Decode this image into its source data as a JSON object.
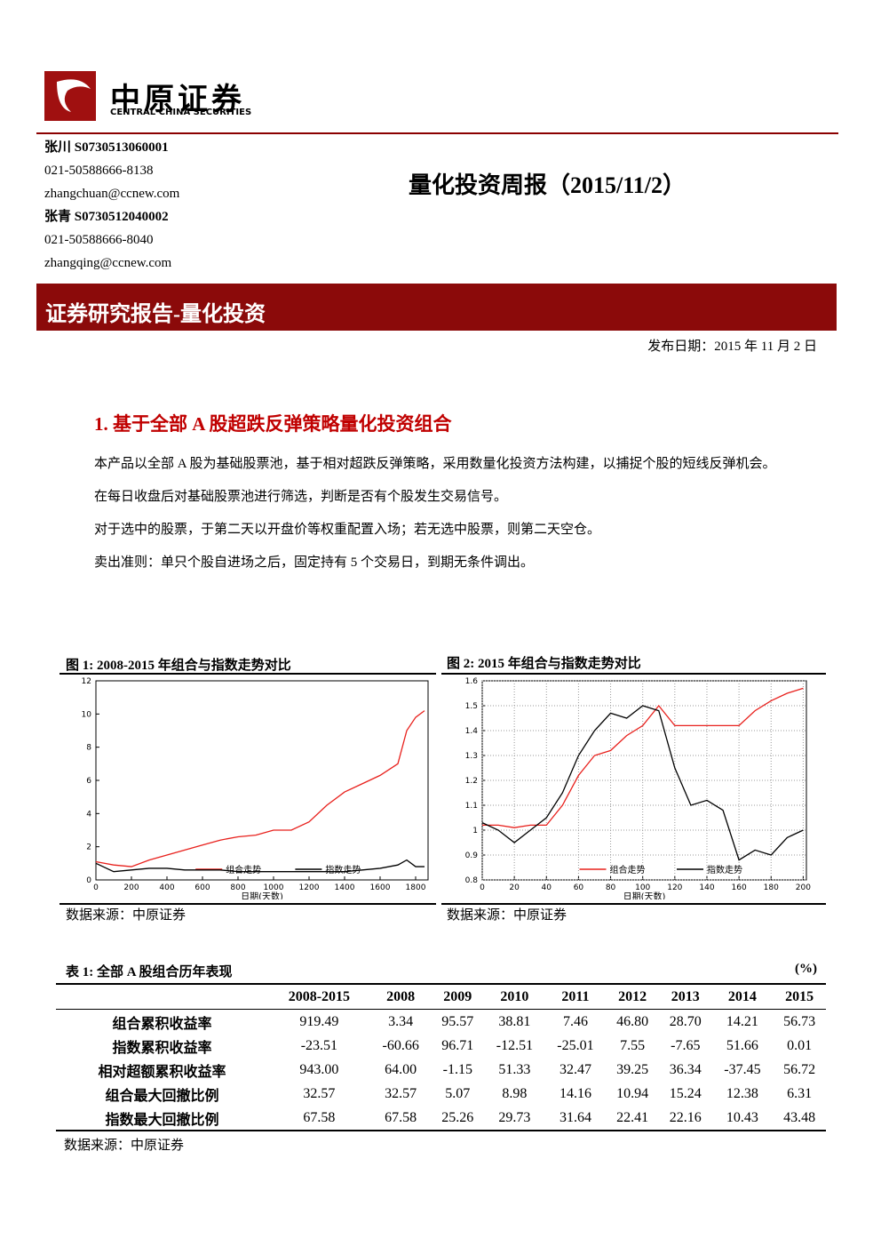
{
  "header": {
    "logo_cn": "中原证券",
    "logo_en": "CENTRAL CHINA SECURITIES",
    "title": "量化投资周报（2015/11/2）"
  },
  "authors": [
    {
      "name": "张川 S0730513060001",
      "phone": "021-50588666-8138",
      "email": "zhangchuan@ccnew.com"
    },
    {
      "name": "张青 S0730512040002",
      "phone": "021-50588666-8040",
      "email": "zhangqing@ccnew.com"
    }
  ],
  "banner": "证券研究报告-量化投资",
  "date": "发布日期：2015 年 11 月 2 日",
  "section": {
    "heading": "1. 基于全部 A 股超跌反弹策略量化投资组合",
    "paragraphs": [
      "本产品以全部 A 股为基础股票池，基于相对超跌反弹策略，采用数量化投资方法构建，以捕捉个股的短线反弹机会。",
      "在每日收盘后对基础股票池进行筛选，判断是否有个股发生交易信号。",
      "对于选中的股票，于第二天以开盘价等权重配置入场；若无选中股票，则第二天空仓。",
      "卖出准则：单只个股自进场之后，固定持有 5 个交易日，到期无条件调出。"
    ]
  },
  "figures": [
    {
      "caption": "图 1: 2008-2015 年组合与指数走势对比",
      "source": "数据来源：中原证券",
      "chart": {
        "type": "line",
        "x_label": "日期(天数)",
        "x": [
          0,
          100,
          200,
          300,
          400,
          500,
          600,
          700,
          800,
          900,
          1000,
          1100,
          1200,
          1300,
          1400,
          1500,
          1600,
          1700,
          1750,
          1800,
          1850
        ],
        "series": [
          {
            "name": "组合走势",
            "color": "#e8201c",
            "values": [
              1.1,
              0.9,
              0.8,
              1.2,
              1.5,
              1.8,
              2.1,
              2.4,
              2.6,
              2.7,
              3.0,
              3.0,
              3.5,
              4.5,
              5.3,
              5.8,
              6.3,
              7.0,
              9.0,
              9.8,
              10.2
            ]
          },
          {
            "name": "指数走势",
            "color": "#000000",
            "values": [
              1.0,
              0.5,
              0.6,
              0.7,
              0.7,
              0.6,
              0.6,
              0.6,
              0.5,
              0.5,
              0.5,
              0.5,
              0.5,
              0.5,
              0.5,
              0.6,
              0.7,
              0.9,
              1.2,
              0.8,
              0.8
            ]
          }
        ],
        "xlim": [
          0,
          1870
        ],
        "xticks": [
          0,
          200,
          400,
          600,
          800,
          1000,
          1200,
          1400,
          1600,
          1800
        ],
        "ylim": [
          0,
          12
        ],
        "yticks": [
          0,
          2,
          4,
          6,
          8,
          10,
          12
        ],
        "grid": false
      }
    },
    {
      "caption": "图 2: 2015 年组合与指数走势对比",
      "source": "数据来源：中原证券",
      "chart": {
        "type": "line",
        "x_label": "日期(天数)",
        "x": [
          0,
          10,
          20,
          30,
          40,
          50,
          60,
          70,
          80,
          90,
          100,
          110,
          120,
          130,
          140,
          150,
          160,
          170,
          180,
          190,
          200
        ],
        "series": [
          {
            "name": "组合走势",
            "color": "#e8201c",
            "values": [
              1.02,
              1.02,
              1.01,
              1.02,
              1.02,
              1.1,
              1.22,
              1.3,
              1.32,
              1.38,
              1.42,
              1.5,
              1.42,
              1.42,
              1.42,
              1.42,
              1.42,
              1.48,
              1.52,
              1.55,
              1.57
            ]
          },
          {
            "name": "指数走势",
            "color": "#000000",
            "values": [
              1.03,
              1.0,
              0.95,
              1.0,
              1.05,
              1.15,
              1.3,
              1.4,
              1.47,
              1.45,
              1.5,
              1.48,
              1.25,
              1.1,
              1.12,
              1.08,
              0.88,
              0.92,
              0.9,
              0.97,
              1.0
            ]
          }
        ],
        "xlim": [
          0,
          202
        ],
        "xticks": [
          0,
          20,
          40,
          60,
          80,
          100,
          120,
          140,
          160,
          180,
          200
        ],
        "ylim": [
          0.8,
          1.6
        ],
        "yticks": [
          0.8,
          0.9,
          1,
          1.1,
          1.2,
          1.3,
          1.4,
          1.5,
          1.6
        ],
        "grid": true
      }
    }
  ],
  "table": {
    "title": "表 1: 全部 A 股组合历年表现",
    "unit": "(%)",
    "source": "数据来源：中原证券",
    "header": [
      "2008-2015",
      "2008",
      "2009",
      "2010",
      "2011",
      "2012",
      "2013",
      "2014",
      "2015"
    ],
    "rows": [
      [
        "组合累积收益率",
        "919.49",
        "3.34",
        "95.57",
        "38.81",
        "7.46",
        "46.80",
        "28.70",
        "14.21",
        "56.73"
      ],
      [
        "指数累积收益率",
        "-23.51",
        "-60.66",
        "96.71",
        "-12.51",
        "-25.01",
        "7.55",
        "-7.65",
        "51.66",
        "0.01"
      ],
      [
        "相对超额累积收益率",
        "943.00",
        "64.00",
        "-1.15",
        "51.33",
        "32.47",
        "39.25",
        "36.34",
        "-37.45",
        "56.72"
      ],
      [
        "组合最大回撤比例",
        "32.57",
        "32.57",
        "5.07",
        "8.98",
        "14.16",
        "10.94",
        "15.24",
        "12.38",
        "6.31"
      ],
      [
        "指数最大回撤比例",
        "67.58",
        "67.58",
        "25.26",
        "29.73",
        "31.64",
        "22.41",
        "22.16",
        "10.43",
        "43.48"
      ]
    ]
  }
}
